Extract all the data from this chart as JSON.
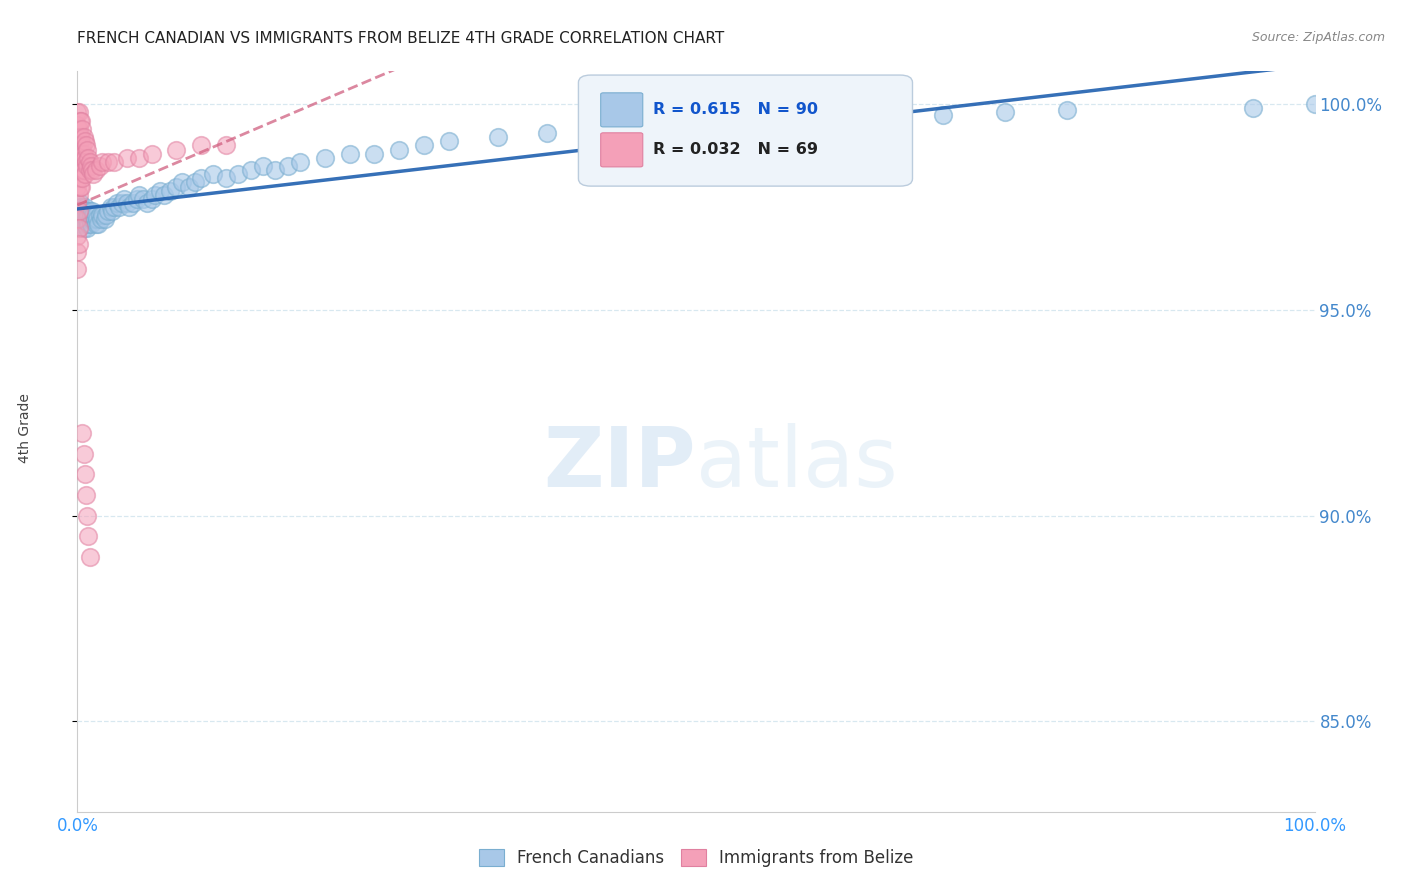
{
  "title": "FRENCH CANADIAN VS IMMIGRANTS FROM BELIZE 4TH GRADE CORRELATION CHART",
  "source": "Source: ZipAtlas.com",
  "ylabel": "4th Grade",
  "xmin": 0.0,
  "xmax": 1.0,
  "ymin": 0.828,
  "ymax": 1.008,
  "yticks": [
    0.85,
    0.9,
    0.95,
    1.0
  ],
  "ytick_labels": [
    "85.0%",
    "90.0%",
    "95.0%",
    "100.0%"
  ],
  "xtick_labels": [
    "0.0%",
    "100.0%"
  ],
  "legend_labels": [
    "French Canadians",
    "Immigrants from Belize"
  ],
  "blue_color": "#a8c8e8",
  "pink_color": "#f4a0b8",
  "blue_edge_color": "#7aaed0",
  "pink_edge_color": "#e080a0",
  "blue_line_color": "#2060b0",
  "pink_line_color": "#d06080",
  "R_blue": 0.615,
  "N_blue": 90,
  "R_pink": 0.032,
  "N_pink": 69,
  "watermark_zip": "ZIP",
  "watermark_atlas": "atlas",
  "grid_color": "#d8e8f0",
  "blue_scatter_x": [
    0.001,
    0.001,
    0.002,
    0.002,
    0.003,
    0.003,
    0.003,
    0.004,
    0.004,
    0.005,
    0.005,
    0.005,
    0.006,
    0.006,
    0.006,
    0.007,
    0.007,
    0.008,
    0.008,
    0.009,
    0.009,
    0.01,
    0.01,
    0.011,
    0.011,
    0.012,
    0.012,
    0.013,
    0.014,
    0.015,
    0.015,
    0.016,
    0.017,
    0.018,
    0.019,
    0.02,
    0.022,
    0.023,
    0.025,
    0.027,
    0.028,
    0.03,
    0.032,
    0.034,
    0.036,
    0.038,
    0.04,
    0.042,
    0.045,
    0.048,
    0.05,
    0.053,
    0.056,
    0.06,
    0.063,
    0.067,
    0.07,
    0.075,
    0.08,
    0.085,
    0.09,
    0.095,
    0.1,
    0.11,
    0.12,
    0.13,
    0.14,
    0.15,
    0.16,
    0.17,
    0.18,
    0.2,
    0.22,
    0.24,
    0.26,
    0.28,
    0.3,
    0.34,
    0.38,
    0.42,
    0.46,
    0.5,
    0.55,
    0.6,
    0.65,
    0.7,
    0.75,
    0.8,
    0.95,
    1.0
  ],
  "blue_scatter_y": [
    0.972,
    0.975,
    0.974,
    0.976,
    0.971,
    0.973,
    0.975,
    0.972,
    0.974,
    0.97,
    0.972,
    0.974,
    0.971,
    0.973,
    0.975,
    0.972,
    0.974,
    0.97,
    0.972,
    0.971,
    0.973,
    0.972,
    0.974,
    0.971,
    0.973,
    0.972,
    0.974,
    0.973,
    0.972,
    0.971,
    0.973,
    0.972,
    0.971,
    0.973,
    0.972,
    0.973,
    0.972,
    0.973,
    0.974,
    0.975,
    0.974,
    0.975,
    0.976,
    0.975,
    0.976,
    0.977,
    0.976,
    0.975,
    0.976,
    0.977,
    0.978,
    0.977,
    0.976,
    0.977,
    0.978,
    0.979,
    0.978,
    0.979,
    0.98,
    0.981,
    0.98,
    0.981,
    0.982,
    0.983,
    0.982,
    0.983,
    0.984,
    0.985,
    0.984,
    0.985,
    0.986,
    0.987,
    0.988,
    0.988,
    0.989,
    0.99,
    0.991,
    0.992,
    0.993,
    0.994,
    0.994,
    0.995,
    0.996,
    0.9965,
    0.997,
    0.9975,
    0.998,
    0.9985,
    0.999,
    1.0
  ],
  "pink_scatter_x": [
    0.0,
    0.0,
    0.0,
    0.0,
    0.0,
    0.0,
    0.0,
    0.0,
    0.0,
    0.0,
    0.0,
    0.0,
    0.001,
    0.001,
    0.001,
    0.001,
    0.001,
    0.001,
    0.001,
    0.001,
    0.001,
    0.002,
    0.002,
    0.002,
    0.002,
    0.002,
    0.003,
    0.003,
    0.003,
    0.003,
    0.003,
    0.004,
    0.004,
    0.004,
    0.004,
    0.005,
    0.005,
    0.005,
    0.006,
    0.006,
    0.006,
    0.007,
    0.007,
    0.008,
    0.008,
    0.009,
    0.01,
    0.01,
    0.011,
    0.012,
    0.013,
    0.015,
    0.018,
    0.02,
    0.025,
    0.03,
    0.04,
    0.05,
    0.06,
    0.08,
    0.1,
    0.12,
    0.004,
    0.005,
    0.006,
    0.007,
    0.008,
    0.009,
    0.01
  ],
  "pink_scatter_y": [
    0.998,
    0.995,
    0.992,
    0.989,
    0.986,
    0.983,
    0.98,
    0.976,
    0.972,
    0.968,
    0.964,
    0.96,
    0.998,
    0.994,
    0.99,
    0.986,
    0.982,
    0.978,
    0.974,
    0.97,
    0.966,
    0.996,
    0.992,
    0.988,
    0.984,
    0.98,
    0.996,
    0.992,
    0.988,
    0.984,
    0.98,
    0.994,
    0.99,
    0.986,
    0.982,
    0.992,
    0.988,
    0.984,
    0.991,
    0.987,
    0.983,
    0.99,
    0.986,
    0.989,
    0.985,
    0.987,
    0.986,
    0.984,
    0.985,
    0.984,
    0.983,
    0.984,
    0.985,
    0.986,
    0.986,
    0.986,
    0.987,
    0.987,
    0.988,
    0.989,
    0.99,
    0.99,
    0.92,
    0.915,
    0.91,
    0.905,
    0.9,
    0.895,
    0.89
  ]
}
